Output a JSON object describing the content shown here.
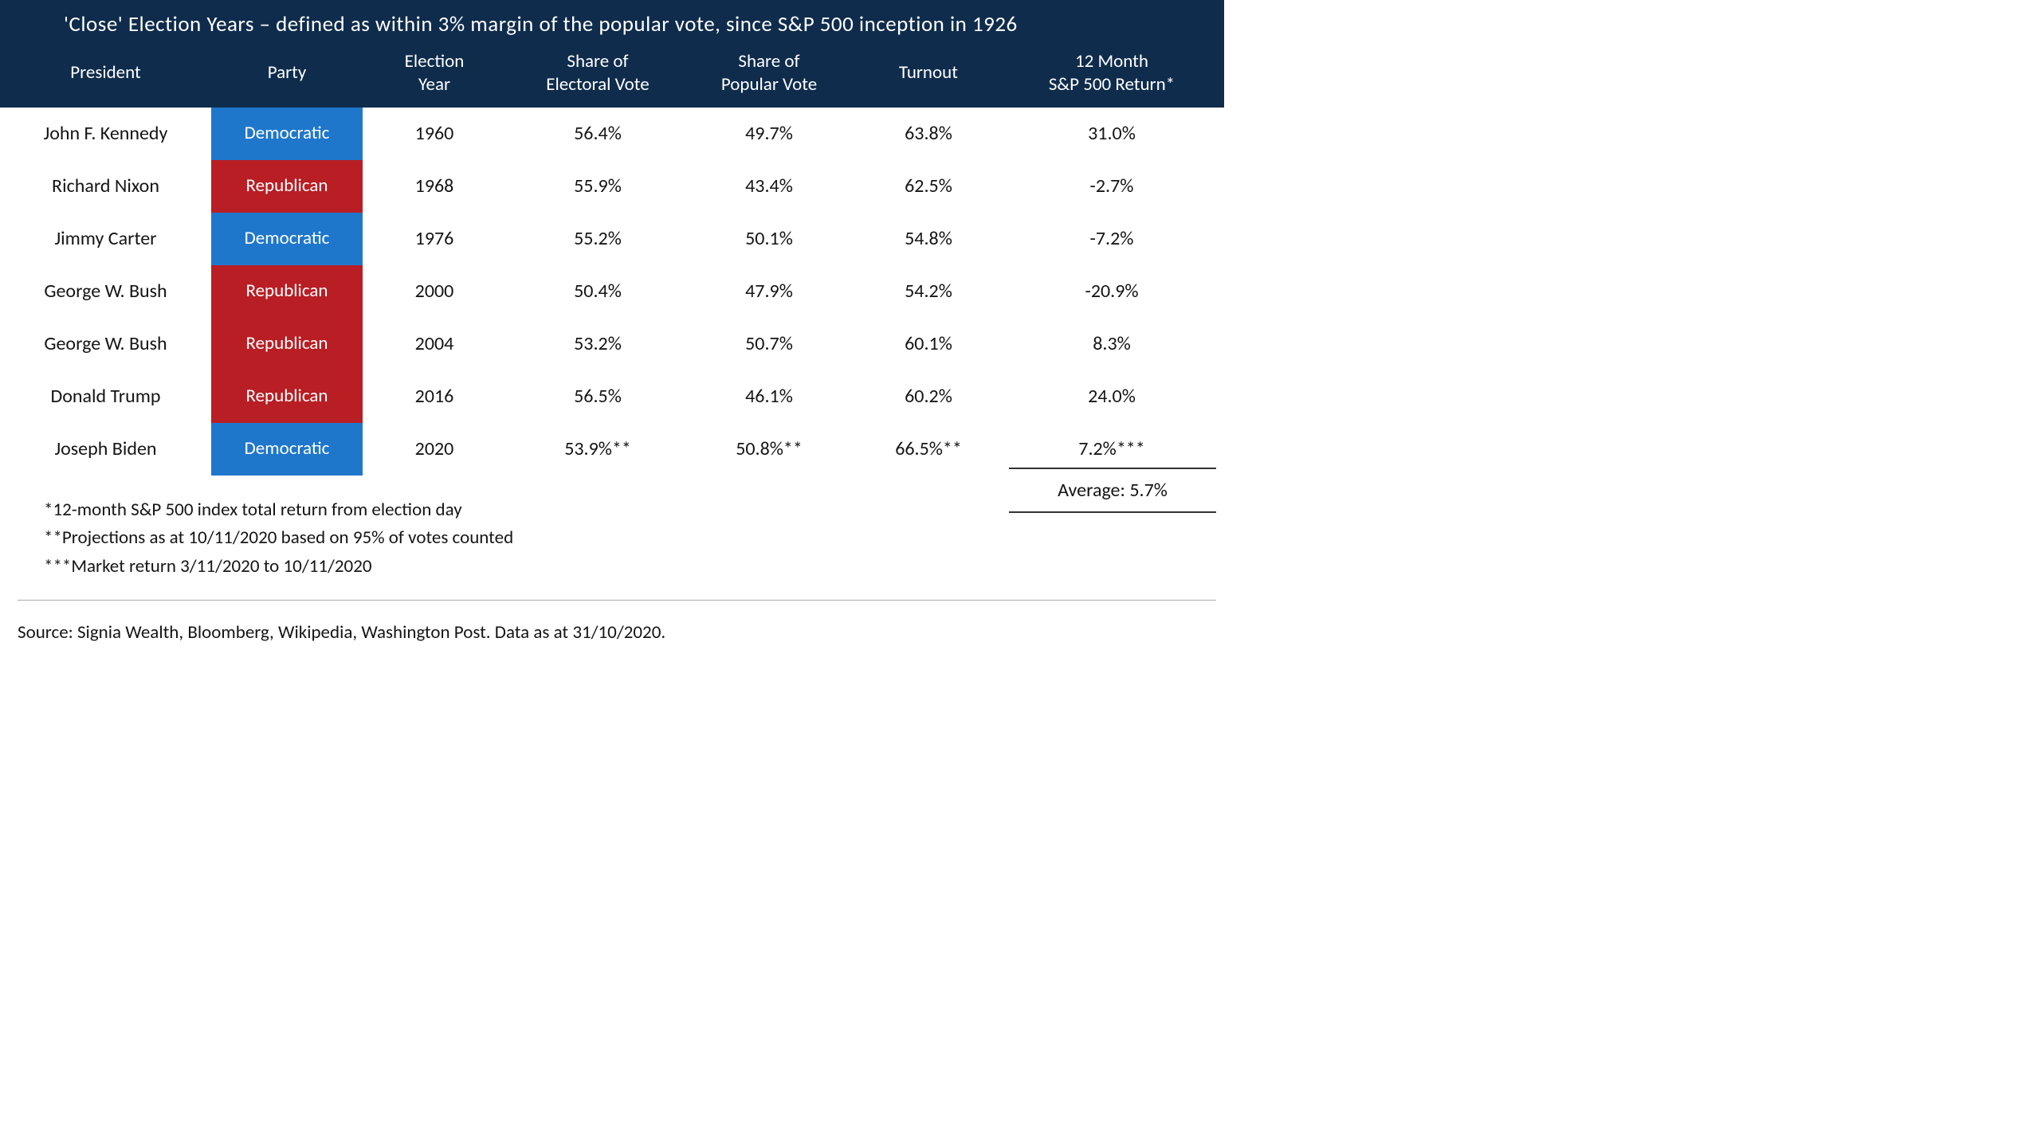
{
  "title": "'Close' Election Years – defined as within 3% margin of the popular vote, since S&P 500 inception in 1926",
  "colors": {
    "header_bg": "#0f2c4c",
    "header_text": "#ffffff",
    "democratic": "#1f77cc",
    "republican": "#b81e24",
    "body_text": "#151515",
    "background": "#ffffff",
    "divider": "#aaaaaa",
    "avg_border": "#333333"
  },
  "font": {
    "title_size": 27,
    "header_size": 23,
    "body_size": 24,
    "family": "Segoe UI / Calibri"
  },
  "columns": [
    {
      "key": "president",
      "label_l1": "President",
      "label_l2": ""
    },
    {
      "key": "party",
      "label_l1": "Party",
      "label_l2": ""
    },
    {
      "key": "year",
      "label_l1": "Election",
      "label_l2": "Year"
    },
    {
      "key": "electoral",
      "label_l1": "Share of",
      "label_l2": "Electoral Vote"
    },
    {
      "key": "popular",
      "label_l1": "Share of",
      "label_l2": "Popular Vote"
    },
    {
      "key": "turnout",
      "label_l1": "Turnout",
      "label_l2": ""
    },
    {
      "key": "return",
      "label_l1": "12 Month",
      "label_l2": "S&P 500 Return*"
    }
  ],
  "rows": [
    {
      "president": "John F. Kennedy",
      "party": "Democratic",
      "party_color": "#1f77cc",
      "year": "1960",
      "electoral": "56.4%",
      "popular": "49.7%",
      "turnout": "63.8%",
      "return": "31.0%"
    },
    {
      "president": "Richard Nixon",
      "party": "Republican",
      "party_color": "#b81e24",
      "year": "1968",
      "electoral": "55.9%",
      "popular": "43.4%",
      "turnout": "62.5%",
      "return": "-2.7%"
    },
    {
      "president": "Jimmy Carter",
      "party": "Democratic",
      "party_color": "#1f77cc",
      "year": "1976",
      "electoral": "55.2%",
      "popular": "50.1%",
      "turnout": "54.8%",
      "return": "-7.2%"
    },
    {
      "president": "George W. Bush",
      "party": "Republican",
      "party_color": "#b81e24",
      "year": "2000",
      "electoral": "50.4%",
      "popular": "47.9%",
      "turnout": "54.2%",
      "return": "-20.9%"
    },
    {
      "president": "George W. Bush",
      "party": "Republican",
      "party_color": "#b81e24",
      "year": "2004",
      "electoral": "53.2%",
      "popular": "50.7%",
      "turnout": "60.1%",
      "return": "8.3%"
    },
    {
      "president": "Donald Trump",
      "party": "Republican",
      "party_color": "#b81e24",
      "year": "2016",
      "electoral": "56.5%",
      "popular": "46.1%",
      "turnout": "60.2%",
      "return": "24.0%"
    },
    {
      "president": "Joseph Biden",
      "party": "Democratic",
      "party_color": "#1f77cc",
      "year": "2020",
      "electoral": "53.9%**",
      "popular": "50.8%**",
      "turnout": "66.5%**",
      "return": "7.2%***"
    }
  ],
  "average_label": "Average:  5.7%",
  "footnotes": [
    "*12-month S&P 500 index total return from election day",
    "**Projections as at 10/11/2020  based on 95% of votes counted",
    "***Market return 3/11/2020  to 10/11/2020"
  ],
  "source": "Source: Signia Wealth, Bloomberg, Wikipedia, Washington Post. Data as at 31/10/2020."
}
